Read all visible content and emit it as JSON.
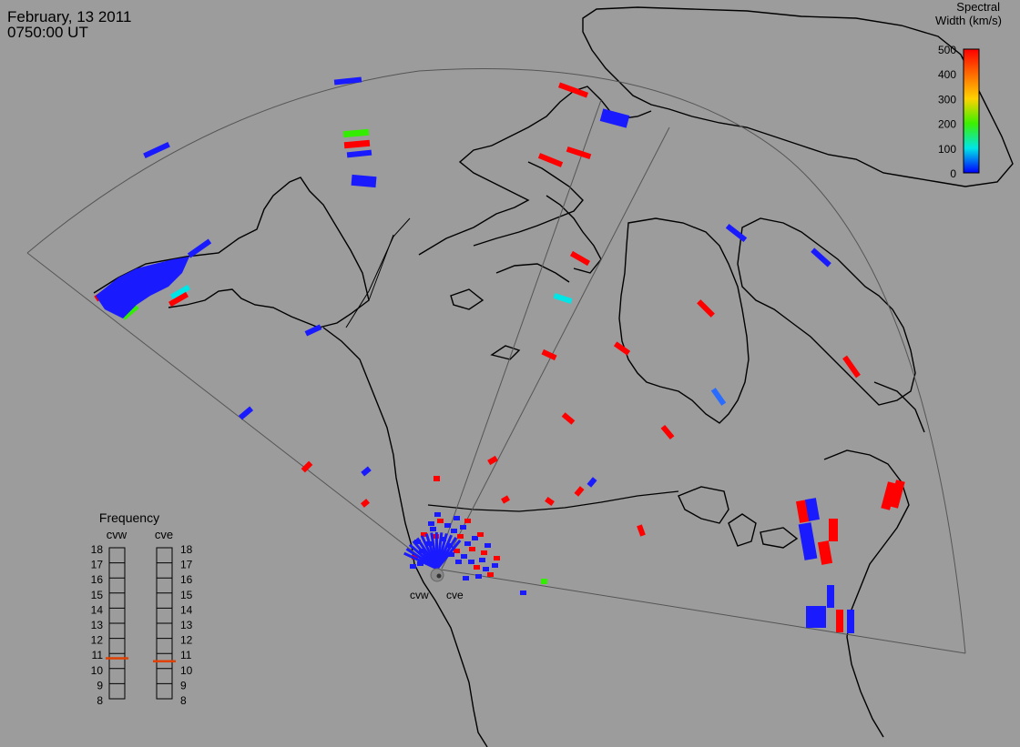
{
  "header": {
    "date": "February, 13 2011",
    "time": "0750:00 UT"
  },
  "colorbar": {
    "title_line1": "Spectral",
    "title_line2": "Width (km/s)",
    "ticks": [
      "500",
      "400",
      "300",
      "200",
      "100",
      "0"
    ],
    "colors_top_to_bottom": [
      "#ff0000",
      "#ff6a00",
      "#ffd200",
      "#3cf000",
      "#00e6e6",
      "#0000ff"
    ]
  },
  "frequency_panel": {
    "title": "Frequency",
    "radar_left": "cvw",
    "radar_right": "cve",
    "ticks": [
      "18",
      "17",
      "16",
      "15",
      "14",
      "13",
      "12",
      "11",
      "10",
      "9",
      "8"
    ],
    "cvw_mhz": 10.7,
    "cve_mhz": 10.5,
    "marker_color": "#e04000"
  },
  "radars": {
    "left_label": "cvw",
    "right_label": "cve"
  },
  "colors": {
    "background": "#9c9c9c",
    "coast": "#000000",
    "fov": "#555555"
  }
}
